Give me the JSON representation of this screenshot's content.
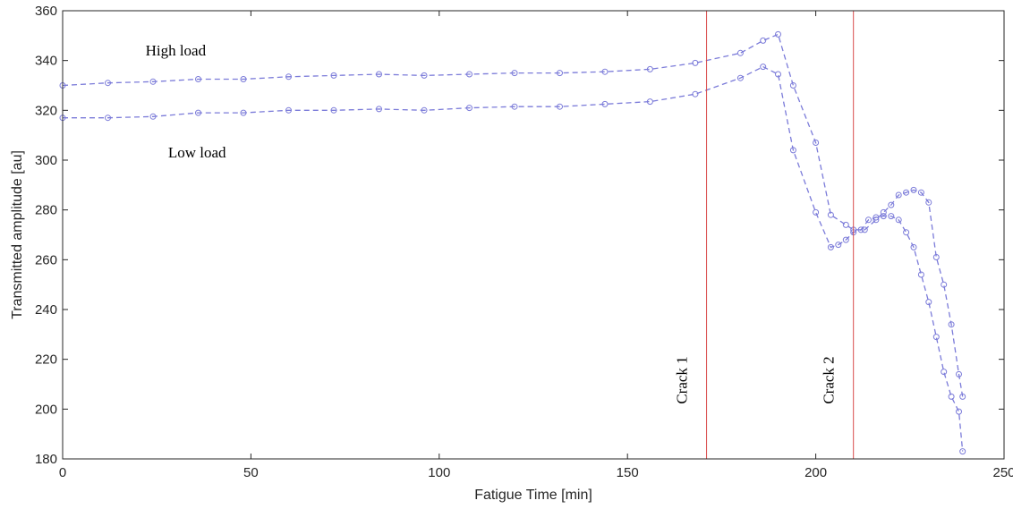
{
  "chart_data": {
    "type": "line",
    "title": "",
    "xlabel": "Fatigue Time [min]",
    "ylabel": "Transmitted amplitude [au]",
    "xlim": [
      0,
      250
    ],
    "ylim": [
      180,
      360
    ],
    "xticks": [
      0,
      50,
      100,
      150,
      200,
      250
    ],
    "yticks": [
      180,
      200,
      220,
      240,
      260,
      280,
      300,
      320,
      340,
      360
    ],
    "grid": false,
    "series": [
      {
        "color": "#7b7bd9",
        "x": [
          0,
          12,
          24,
          36,
          48,
          60,
          72,
          84,
          96,
          108,
          120,
          132,
          144,
          156,
          168,
          180,
          186,
          190,
          194,
          200,
          204,
          208,
          210,
          213,
          216,
          218,
          220,
          222,
          224,
          226,
          228,
          230,
          232,
          234,
          236,
          238,
          239
        ],
        "y": [
          330,
          331,
          331.5,
          332.5,
          332.5,
          333.5,
          334,
          334.5,
          334,
          334.5,
          335,
          335,
          335.5,
          336.5,
          339,
          343,
          348,
          350.5,
          330,
          307,
          278,
          274,
          272,
          272,
          276,
          279,
          282,
          286,
          287,
          288,
          287,
          283,
          261,
          250,
          234,
          214,
          205
        ]
      },
      {
        "color": "#7b7bd9",
        "x": [
          0,
          12,
          24,
          36,
          48,
          60,
          72,
          84,
          96,
          108,
          120,
          132,
          144,
          156,
          168,
          180,
          186,
          190,
          194,
          200,
          204,
          206,
          208,
          210,
          212,
          214,
          216,
          218,
          220,
          222,
          224,
          226,
          228,
          230,
          232,
          234,
          236,
          238,
          239
        ],
        "y": [
          317,
          317,
          317.5,
          319,
          319,
          320,
          320,
          320.5,
          320,
          321,
          321.5,
          321.5,
          322.5,
          323.5,
          326.5,
          333,
          337.5,
          334.5,
          304,
          279,
          265,
          266,
          268,
          271,
          272,
          276,
          277,
          277.5,
          277.5,
          276,
          271,
          265,
          254,
          243,
          229,
          215,
          205,
          199,
          183
        ]
      }
    ],
    "vertical_lines": [
      {
        "x": 171,
        "color": "#d94b4b",
        "label": "Crack 1"
      },
      {
        "x": 210,
        "color": "#d94b4b",
        "label": "Crack 2"
      }
    ],
    "annotations": [
      {
        "text": "High load",
        "x": 22,
        "y": 342
      },
      {
        "text": "Low load",
        "x": 28,
        "y": 301
      }
    ]
  }
}
